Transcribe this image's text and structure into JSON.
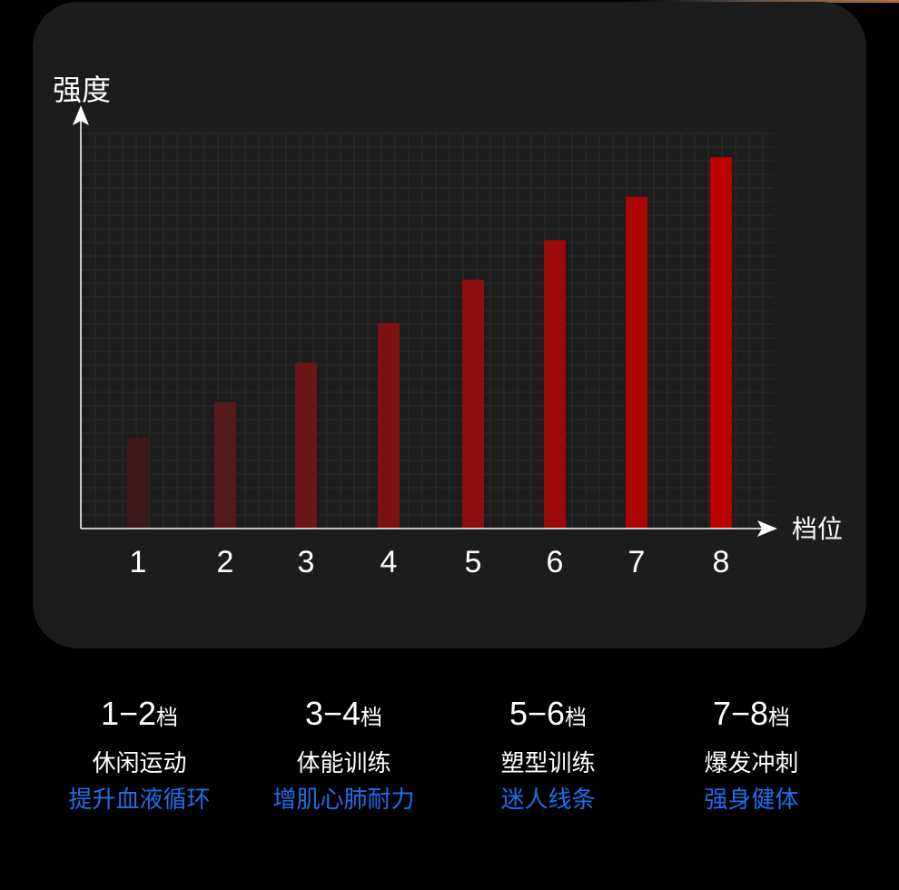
{
  "chart_data": {
    "type": "bar",
    "ylabel": "强度",
    "xlabel": "档位",
    "categories": [
      "1",
      "2",
      "3",
      "4",
      "5",
      "6",
      "7",
      "8"
    ],
    "values": [
      23,
      32,
      42,
      52,
      63,
      73,
      84,
      94
    ],
    "ylim": [
      0,
      100
    ],
    "grid": true,
    "colors": [
      "#3f1818",
      "#561919",
      "#6a1616",
      "#7c1212",
      "#8c0e0e",
      "#9c0909",
      "#aa0505",
      "#ba0000"
    ]
  },
  "levels": [
    {
      "range": "1−2",
      "unit": "档",
      "name": "休闲运动",
      "benefit": "提升血液循环"
    },
    {
      "range": "3−4",
      "unit": "档",
      "name": "体能训练",
      "benefit": "增肌心肺耐力"
    },
    {
      "range": "5−6",
      "unit": "档",
      "name": "塑型训练",
      "benefit": "迷人线条"
    },
    {
      "range": "7−8",
      "unit": "档",
      "name": "爆发冲刺",
      "benefit": "强身健体"
    }
  ],
  "colors": {
    "card": "#1c1c1c",
    "benefit_text": "#1f6fea"
  }
}
